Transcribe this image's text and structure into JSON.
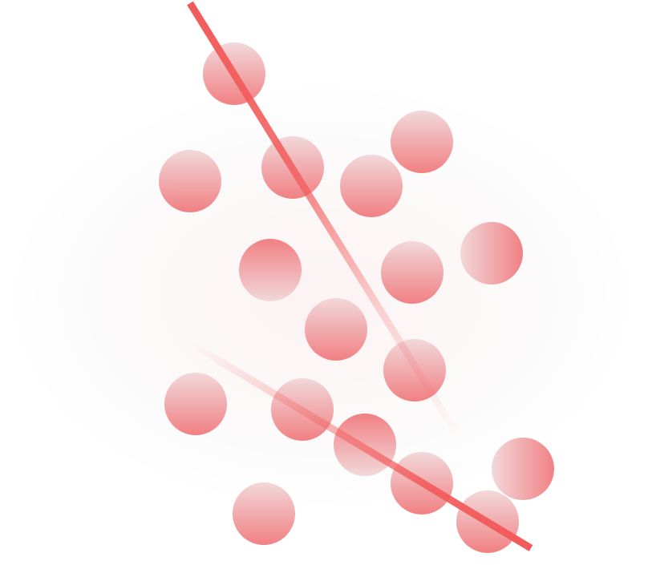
{
  "palette": {
    "accent": "#f25a5a",
    "circle_light": "#f1d6d8",
    "circle_dark": "#f07a7d",
    "background": "#ffffff"
  },
  "illustration": {
    "icon": "abstract-circles-and-lines",
    "circle_count": 18,
    "line_count": 2
  }
}
